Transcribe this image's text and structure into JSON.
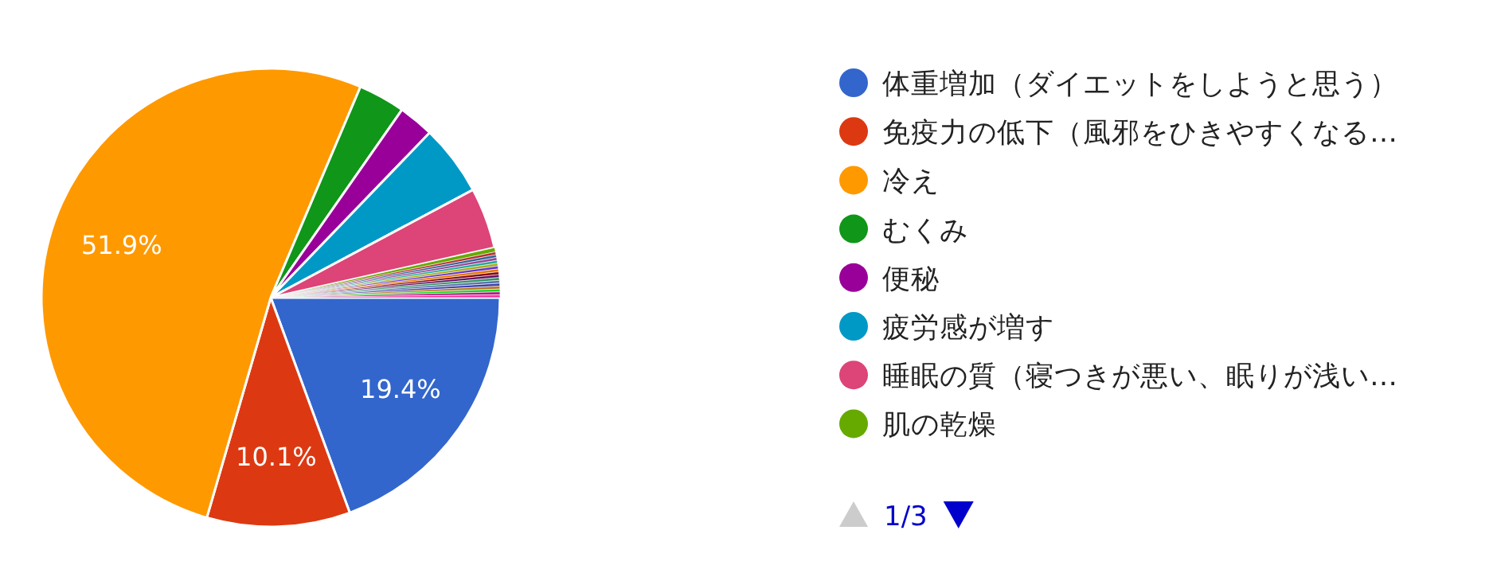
{
  "chart_data": {
    "type": "pie",
    "categories": [
      "体重増加（ダイエットをしようと思う）",
      "免疫力の低下（風邪をひきやすくなる…",
      "冷え",
      "むくみ",
      "便秘",
      "疲労感が増す",
      "睡眠の質（寝つきが悪い、眠りが浅い…",
      "肌の乾燥",
      null,
      null,
      null,
      null,
      null,
      null,
      null,
      null,
      null,
      null,
      null,
      null,
      null,
      null,
      null,
      null
    ],
    "values": [
      19.4,
      10.1,
      51.9,
      3.3,
      2.5,
      5.0,
      4.3,
      0.3,
      0.2,
      0.2,
      0.2,
      0.2,
      0.2,
      0.2,
      0.2,
      0.2,
      0.2,
      0.2,
      0.2,
      0.2,
      0.2,
      0.2,
      0.2,
      0.2
    ],
    "colors": [
      "#3366cc",
      "#dc3912",
      "#ff9900",
      "#109618",
      "#990099",
      "#0099c6",
      "#dd4477",
      "#66aa00",
      "#b82e2e",
      "#316395",
      "#994499",
      "#22aa99",
      "#aaaa11",
      "#6633cc",
      "#e67300",
      "#8b0707",
      "#651067",
      "#329262",
      "#5574a6",
      "#3b3eac",
      "#b77322",
      "#16d620",
      "#b91383",
      "#f4359e"
    ],
    "value_labels": [
      "19.4%",
      "10.1%",
      "51.9%",
      null,
      null,
      null,
      null,
      null,
      null,
      null,
      null,
      null,
      null,
      null,
      null,
      null,
      null,
      null,
      null,
      null,
      null,
      null,
      null,
      null
    ],
    "legend": "right",
    "annotations": [
      "1/3"
    ]
  }
}
